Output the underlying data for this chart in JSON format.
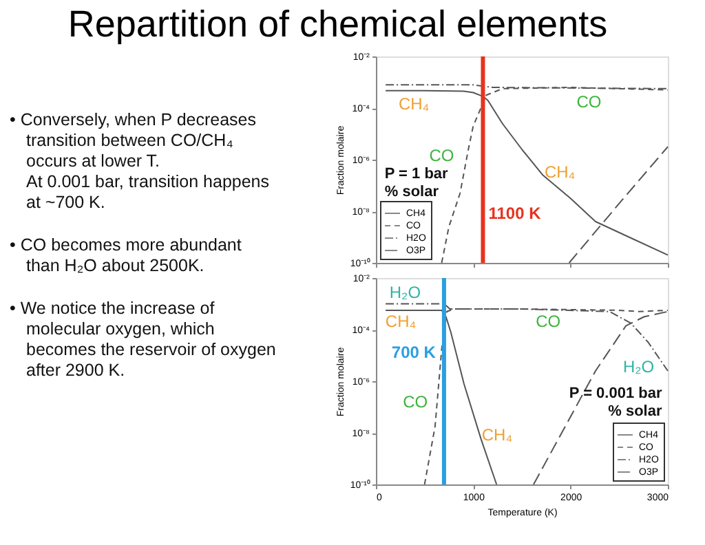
{
  "chart_data": [
    {
      "type": "other",
      "title": "Repartition of chemical elements",
      "annotations": [
        "•  Conversely, when P decreases\n    transition between CO/CH₄\n    occurs at lower T.\n    At 0.001 bar, transition happens\n    at ~700 K.",
        "•  CO becomes more abundant\n    than H₂O about 2500K.",
        "•  We notice the increase of\n    molecular oxygen, which\n    becomes the reservoir of oxygen\n    after 2900 K."
      ]
    },
    {
      "type": "line",
      "ylabel": "Fraction molaire",
      "log": true,
      "grid": false,
      "legend": "bottom left",
      "tick_labels": "y",
      "xlim": [
        0,
        3000
      ],
      "xticks": [
        0,
        1000,
        2000,
        3000
      ],
      "ylim": [
        1e-10,
        0.01
      ],
      "yticks": [
        {
          "value": 0.01,
          "label": "10⁻²"
        },
        {
          "value": 0.0001,
          "label": "10⁻⁴"
        },
        {
          "value": 1e-06,
          "label": "10⁻⁶"
        },
        {
          "value": 1e-08,
          "label": "10⁻⁸"
        },
        {
          "value": 1e-10,
          "label": "10⁻¹⁰"
        }
      ],
      "series": [
        {
          "name": "CH4",
          "color": "#555555",
          "line_style": "solid",
          "x": [
            100,
            500,
            900,
            1000,
            1100,
            1150,
            1300,
            1500,
            1716,
            2000,
            2257,
            2600,
            3000
          ],
          "values": [
            0.000468,
            0.000468,
            0.000447,
            0.000398,
            0.000282,
            0.0002,
            2.51e-05,
            2.51e-06,
            2.51e-07,
            3.16e-08,
            3.98e-09,
            1e-09,
            2e-10
          ]
        },
        {
          "name": "CO",
          "color": "#555555",
          "line_style": "dashed",
          "x": [
            676,
            750,
            865,
            950,
            1000,
            1135,
            1300,
            2000,
            3000
          ],
          "values": [
            1e-10,
            2.51e-09,
            5.01e-08,
            2.51e-06,
            2e-05,
            0.000316,
            0.000562,
            0.000631,
            0.000501
          ]
        },
        {
          "name": "H2O",
          "color": "#555555",
          "line_style": "dashdot",
          "x": [
            100,
            1000,
            1200,
            3000
          ],
          "values": [
            0.000794,
            0.000794,
            0.000631,
            0.000562
          ]
        },
        {
          "name": "O3P",
          "color": "#555555",
          "line_style": "longdash",
          "x": [
            1986,
            2500,
            3000
          ],
          "values": [
            1e-10,
            2e-08,
            3.16e-06
          ]
        }
      ],
      "ref_lines": [
        {
          "axis": "x",
          "value": 1100,
          "color": "#e8321e",
          "label": "1100 K"
        }
      ],
      "annotations": [
        "CH₄",
        "CO",
        "CO",
        "CH₄",
        "P = 1 bar\n% solar"
      ]
    },
    {
      "type": "line",
      "ylabel": "Fraction molaire",
      "xlabel": "Temperature (K)",
      "log": true,
      "grid": false,
      "legend": "bottom right",
      "xlim": [
        0,
        3000
      ],
      "xticks": [
        0,
        1000,
        2000,
        3000
      ],
      "ylim": [
        1e-10,
        0.01
      ],
      "yticks": [
        {
          "value": 0.01,
          "label": "10⁻²"
        },
        {
          "value": 0.0001,
          "label": "10⁻⁴"
        },
        {
          "value": 1e-06,
          "label": "10⁻⁶"
        },
        {
          "value": 1e-08,
          "label": "10⁻⁸"
        },
        {
          "value": 1e-10,
          "label": "10⁻¹⁰"
        }
      ],
      "series": [
        {
          "name": "CH4",
          "color": "#555555",
          "line_style": "solid",
          "x": [
            100,
            676,
            720,
            770,
            905,
            1081,
            1240
          ],
          "values": [
            0.000562,
            0.000562,
            0.000316,
            7.94e-05,
            7.94e-07,
            5.62e-09,
            1e-10
          ]
        },
        {
          "name": "CO",
          "color": "#555555",
          "line_style": "dashed",
          "x": [
            500,
            608,
            676,
            730,
            800,
            1500,
            2500,
            2700,
            3000
          ],
          "values": [
            1e-10,
            1.78e-08,
            1.78e-05,
            0.000501,
            0.000631,
            0.000631,
            0.000562,
            0.000501,
            0.000562
          ]
        },
        {
          "name": "H2O",
          "color": "#555555",
          "line_style": "dashdot",
          "x": [
            100,
            700,
            760,
            1500,
            2400,
            2620,
            2800,
            3000
          ],
          "values": [
            0.001,
            0.001,
            0.000631,
            0.000631,
            0.000501,
            0.000178,
            3.16e-05,
            2.51e-06
          ]
        },
        {
          "name": "O3P",
          "color": "#555555",
          "line_style": "longdash",
          "x": [
            1620,
            1946,
            2257,
            2570,
            2757,
            3000
          ],
          "values": [
            1e-10,
            1.78e-08,
            2.51e-06,
            0.000141,
            0.000316,
            0.000501
          ]
        }
      ],
      "ref_lines": [
        {
          "axis": "x",
          "value": 700,
          "color": "#2a9fe0",
          "label": "700 K"
        }
      ],
      "annotations": [
        "H₂O",
        "CH₄",
        "CO",
        "H₂O",
        "CO",
        "CH₄",
        "P = 0.001 bar\n% solar"
      ]
    }
  ]
}
